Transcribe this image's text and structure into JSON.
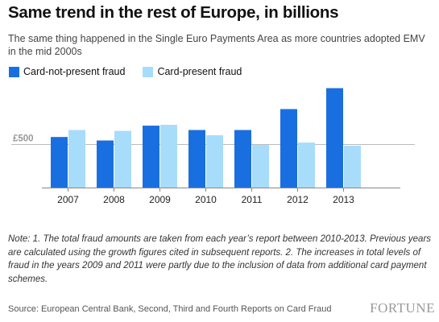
{
  "header": {
    "title": "Same trend in the rest of Europe, in billions",
    "subtitle": "The same thing happened in the Single Euro Payments Area as more countries adopted EMV in the mid 2000s"
  },
  "colors": {
    "card_not_present": "#1a6fe0",
    "card_present": "#a8dcfb",
    "reference_line": "#bbbbbb",
    "axis_line": "#888888"
  },
  "chart_data": {
    "type": "bar",
    "categories": [
      "2007",
      "2008",
      "2009",
      "2010",
      "2011",
      "2012",
      "2013"
    ],
    "series": [
      {
        "name": "Card-not-present fraud",
        "values": [
          290,
          270,
          355,
          330,
          330,
          450,
          570
        ]
      },
      {
        "name": "Card-present fraud",
        "values": [
          330,
          325,
          360,
          300,
          245,
          258,
          240
        ]
      }
    ],
    "reference_line": {
      "value": 250,
      "label": "£500"
    },
    "ylim": [
      0,
      600
    ],
    "grid": false,
    "legend_position": "top-left",
    "title": "",
    "xlabel": "",
    "ylabel": ""
  },
  "footer": {
    "note": "Note: 1. The total fraud amounts are taken from each year’s report between 2010-2013. Previous years are calculated using the growth figures cited in subsequent reports. 2. The increases in total levels of fraud in the years 2009 and 2011 were partly due to the inclusion of data from additional card payment schemes.",
    "source": "Source: European Central Bank, Second, Third and Fourth Reports on Card Fraud",
    "brand": "FORTUNE"
  }
}
